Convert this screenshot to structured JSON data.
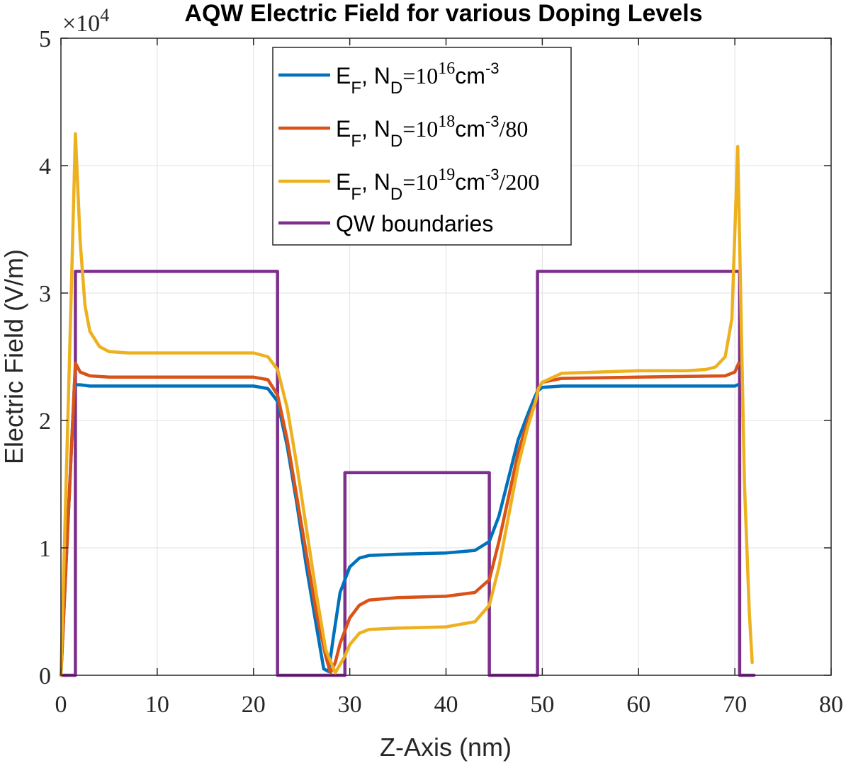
{
  "chart_data": {
    "type": "line",
    "title": "AQW Electric Field for various Doping Levels",
    "xlabel": "Z-Axis (nm)",
    "ylabel": "Electric Field (V/m)",
    "y_multiplier": "×10",
    "y_multiplier_exp": "4",
    "xlim": [
      0,
      80
    ],
    "ylim": [
      0,
      50000
    ],
    "x_ticks": [
      0,
      10,
      20,
      30,
      40,
      50,
      60,
      70,
      80
    ],
    "y_ticks": [
      0,
      10000,
      20000,
      30000,
      40000,
      50000
    ],
    "y_tick_labels": [
      "0",
      "1",
      "2",
      "3",
      "4",
      "5"
    ],
    "grid": true,
    "legend_position": "top-center",
    "legend": [
      {
        "parts": [
          "E",
          "F",
          ", N",
          "D",
          "=10",
          "16",
          "cm",
          "-3",
          ""
        ]
      },
      {
        "parts": [
          "E",
          "F",
          ", N",
          "D",
          "=10",
          "18",
          "cm",
          "-3",
          "/80"
        ]
      },
      {
        "parts": [
          "E",
          "F",
          ", N",
          "D",
          "=10",
          "19",
          "cm",
          "-3",
          "/200"
        ]
      },
      {
        "parts": [
          "QW boundaries"
        ]
      }
    ],
    "series": [
      {
        "color": "#0072BD",
        "x": [
          0,
          1.4,
          2,
          3,
          5,
          10,
          15,
          20,
          21.5,
          22.5,
          23.5,
          24.5,
          25.5,
          26.5,
          27.3,
          27.8,
          28.3,
          29,
          30,
          31,
          32,
          35,
          40,
          43,
          44.5,
          45.5,
          46.5,
          47.5,
          48.5,
          49.2,
          49.5,
          50,
          52,
          60,
          70,
          70.3
        ],
        "y": [
          0,
          22800,
          22800,
          22700,
          22700,
          22700,
          22700,
          22700,
          22500,
          21500,
          18000,
          13500,
          8500,
          4000,
          500,
          300,
          3000,
          6500,
          8500,
          9200,
          9400,
          9500,
          9600,
          9800,
          10500,
          12500,
          15500,
          18500,
          20500,
          21800,
          22300,
          22600,
          22700,
          22700,
          22700,
          22800
        ]
      },
      {
        "color": "#D95319",
        "x": [
          0,
          1.5,
          2,
          3,
          5,
          10,
          15,
          20,
          21.5,
          22.5,
          23.5,
          24.5,
          25.5,
          26.5,
          27.5,
          28,
          28.5,
          29,
          30,
          31,
          32,
          35,
          40,
          43,
          44.5,
          45.5,
          46.5,
          47.5,
          48.5,
          49.3,
          49.6,
          50,
          52,
          60,
          69,
          70,
          70.4
        ],
        "y": [
          0,
          24500,
          23800,
          23500,
          23400,
          23400,
          23400,
          23400,
          23200,
          22000,
          18500,
          14000,
          9500,
          5000,
          1500,
          200,
          1000,
          2500,
          4500,
          5500,
          5900,
          6100,
          6200,
          6500,
          7500,
          10500,
          14000,
          17500,
          20000,
          21500,
          22500,
          23000,
          23300,
          23400,
          23500,
          23800,
          24500
        ]
      },
      {
        "color": "#EDB120",
        "x": [
          0,
          1.0,
          1.5,
          2,
          2.5,
          3,
          4,
          5,
          7,
          10,
          15,
          20,
          21.5,
          22.5,
          23.5,
          24.5,
          25.5,
          26.5,
          27.5,
          28.5,
          29.5,
          30,
          31,
          32,
          35,
          40,
          43,
          44.5,
          45.5,
          46.5,
          47.5,
          48.5,
          49.3,
          49.6,
          50,
          52,
          60,
          65,
          67,
          68,
          69,
          69.7,
          70.3,
          70.6,
          71,
          71.5,
          71.8
        ],
        "y": [
          0,
          28000,
          42500,
          34000,
          29000,
          27000,
          25800,
          25400,
          25300,
          25300,
          25300,
          25300,
          25000,
          24000,
          21000,
          16500,
          11500,
          6500,
          2000,
          200,
          1500,
          2400,
          3300,
          3600,
          3700,
          3800,
          4200,
          5500,
          8500,
          12500,
          16500,
          19500,
          21500,
          22500,
          23000,
          23700,
          23900,
          23900,
          24000,
          24200,
          25000,
          28000,
          41500,
          30000,
          15000,
          5000,
          1000
        ]
      },
      {
        "color": "#7E2F8E",
        "x": [
          0,
          1.5,
          1.5,
          22.5,
          22.5,
          29.5,
          29.5,
          44.5,
          44.5,
          49.5,
          49.5,
          70.5,
          70.5,
          72
        ],
        "y": [
          0,
          0,
          31700,
          31700,
          0,
          0,
          15900,
          15900,
          0,
          0,
          31700,
          31700,
          0,
          0
        ]
      }
    ]
  }
}
